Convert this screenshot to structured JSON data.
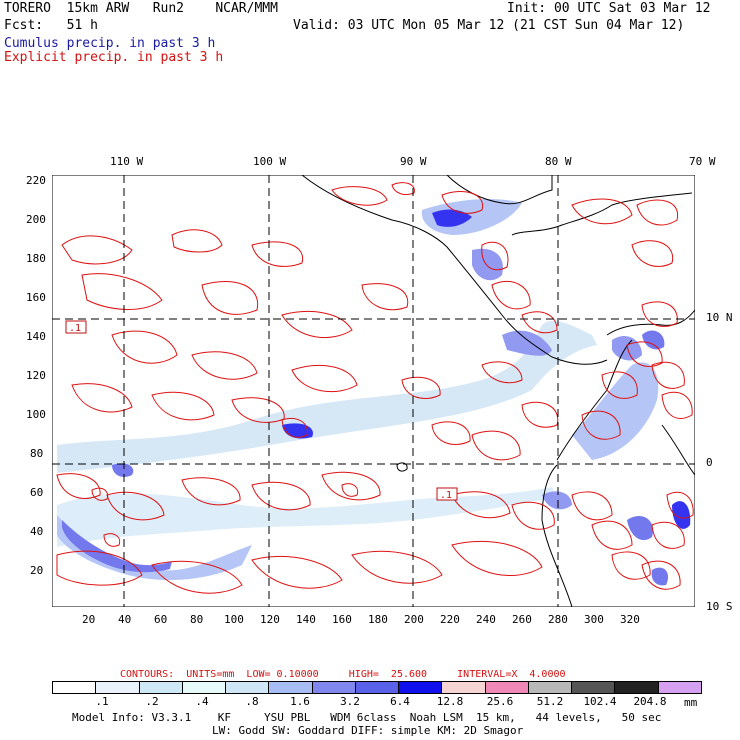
{
  "header": {
    "model": "TORERO  15km ARW   Run2    NCAR/MMM",
    "init": "Init: 00 UTC Sat 03 Mar 12",
    "fcst": "Fcst:   51 h",
    "valid": "Valid: 03 UTC Mon 05 Mar 12 (21 CST Sun 04 Mar 12)",
    "cumulus": "Cumulus precip. in past 3 h",
    "explicit": "Explicit precip. in past 3 h"
  },
  "axes": {
    "top": [
      "110 W",
      "100 W",
      "90 W",
      "80 W",
      "70 W"
    ],
    "left": [
      "220",
      "200",
      "180",
      "160",
      "140",
      "120",
      "100",
      "80",
      "60",
      "40",
      "20"
    ],
    "bottom": [
      "20",
      "40",
      "60",
      "80",
      "100",
      "120",
      "140",
      "160",
      "180",
      "200",
      "220",
      "240",
      "260",
      "280",
      "300",
      "320"
    ],
    "right": [
      "10 N",
      "0",
      "10 S"
    ]
  },
  "map_labels": {
    "box1": ".1",
    "box2": ".1"
  },
  "contour_info": {
    "text": "CONTOURS:  UNITS=mm  LOW= 0.10000     HIGH=  25.600     INTERVAL=X  4.0000"
  },
  "legend": {
    "colors": [
      "#ffffff",
      "#eaf3fb",
      "#cfe8f5",
      "#e6fafa",
      "#cfe6f7",
      "#a9bdf5",
      "#8088ee",
      "#5b62ea",
      "#1010ee",
      "#f7d4d4",
      "#f088b8",
      "#b8b8b8",
      "#555555",
      "#222222",
      "#d6a0f0"
    ],
    "labels": [
      ".1",
      ".2",
      ".4",
      ".8",
      "1.6",
      "3.2",
      "6.4",
      "12.8",
      "25.6",
      "51.2",
      "102.4",
      "204.8"
    ],
    "unit": "mm"
  },
  "footer": {
    "line1": "Model Info: V3.3.1    KF     YSU PBL   WDM 6class  Noah LSM  15 km,   44 levels,   50 sec",
    "line2": "LW: Godd SW: Goddard DIFF: simple KM: 2D Smagor"
  }
}
